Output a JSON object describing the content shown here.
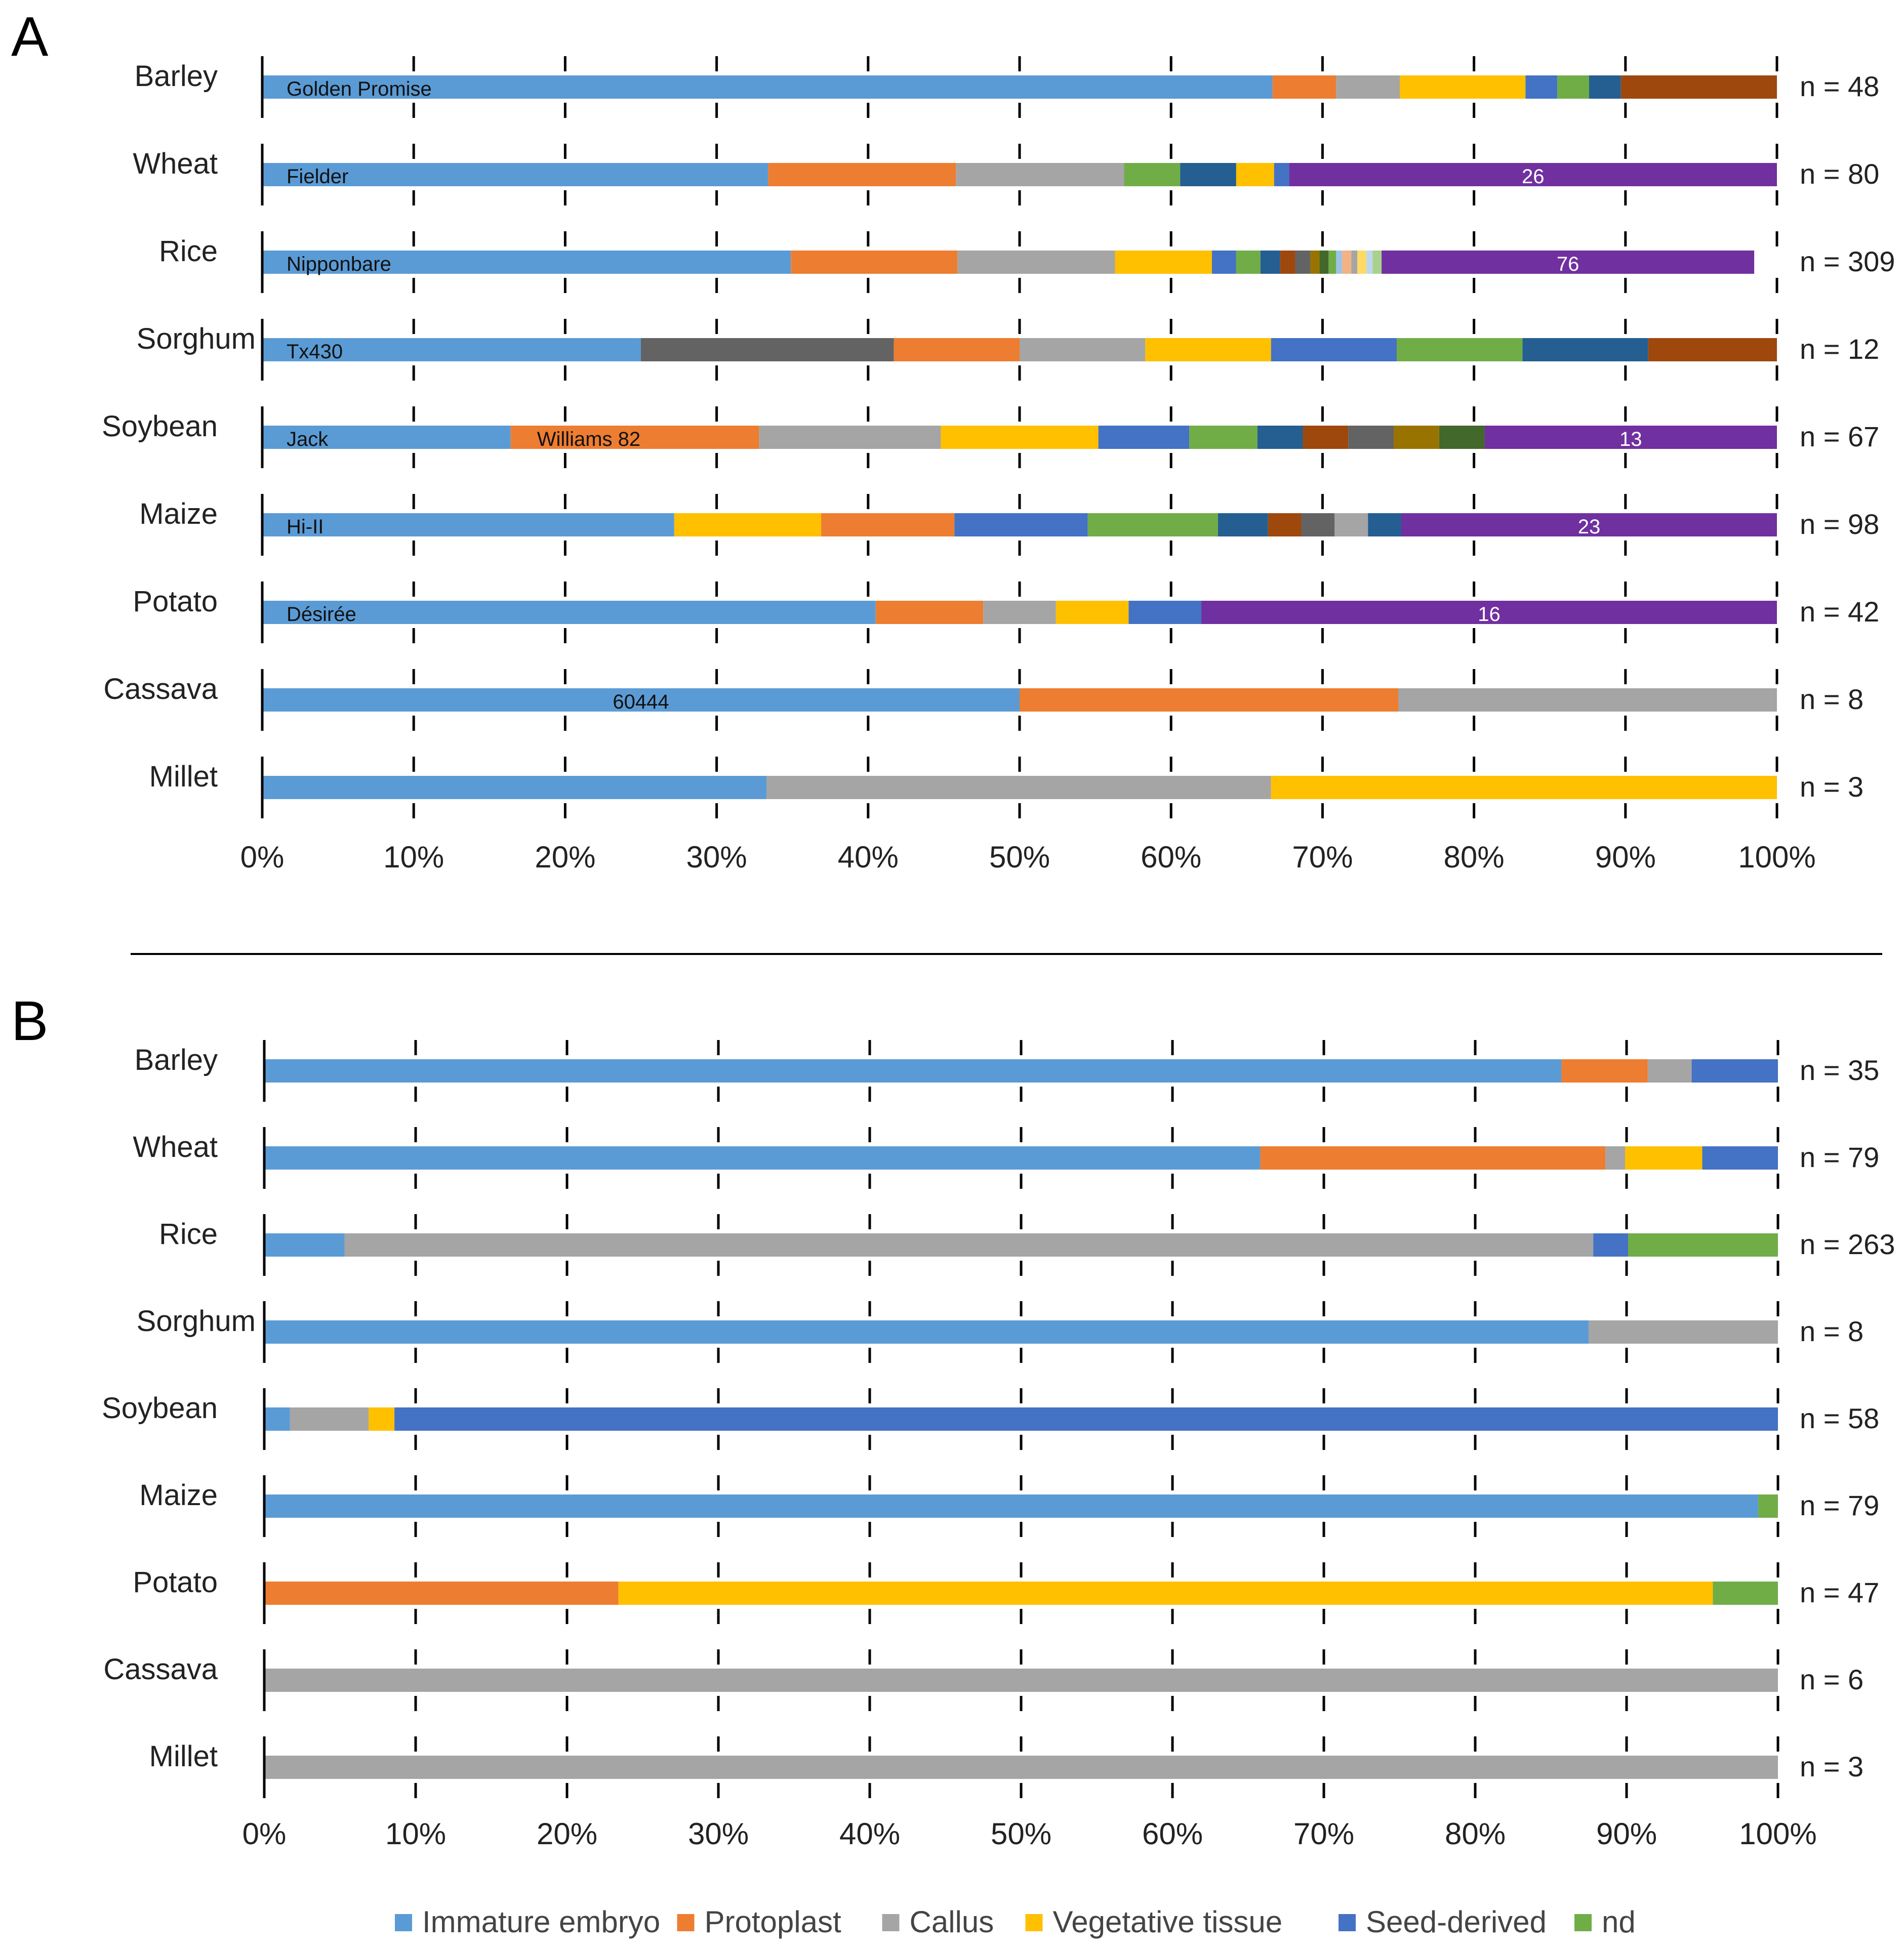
{
  "colors": {
    "immature_embryo": "#5B9BD5",
    "protoplast": "#ED7D31",
    "callus": "#A5A5A5",
    "vegetative_tissue": "#FFC000",
    "seed_derived": "#4472C4",
    "nd": "#70AD47",
    "dark_gray": "#636363",
    "dark_blue": "#255E91",
    "brown": "#9E480E",
    "purple": "#7030A0",
    "olive": "#997300",
    "dark_green": "#43682B",
    "light_orange": "#F4B183",
    "light_yellow": "#FFD966",
    "light_blue": "#9DC3E6",
    "light_green": "#A9D18E",
    "pale_blue": "#BDD7EE"
  },
  "legend": [
    {
      "label": "Immature embryo",
      "color": "immature_embryo"
    },
    {
      "label": "Protoplast",
      "color": "protoplast"
    },
    {
      "label": "Callus",
      "color": "callus"
    },
    {
      "label": "Vegetative tissue",
      "color": "vegetative_tissue"
    },
    {
      "label": "Seed-derived",
      "color": "seed_derived"
    },
    {
      "label": "nd",
      "color": "nd"
    }
  ],
  "chart_data": [
    {
      "panel": "A",
      "type": "bar",
      "orientation": "horizontal-stacked-100",
      "x_ticks": [
        "0%",
        "10%",
        "20%",
        "30%",
        "40%",
        "50%",
        "60%",
        "70%",
        "80%",
        "90%",
        "100%"
      ],
      "xlim": [
        0,
        100
      ],
      "rows": [
        {
          "crop": "Barley",
          "n": "n = 48",
          "segments": [
            {
              "color": "immature_embryo",
              "value": 66.7,
              "label": "Golden Promise"
            },
            {
              "color": "protoplast",
              "value": 4.2
            },
            {
              "color": "callus",
              "value": 4.2
            },
            {
              "color": "vegetative_tissue",
              "value": 8.3
            },
            {
              "color": "seed_derived",
              "value": 2.1
            },
            {
              "color": "nd",
              "value": 2.1
            },
            {
              "color": "dark_blue",
              "value": 2.1
            },
            {
              "color": "brown",
              "value": 10.3
            }
          ]
        },
        {
          "crop": "Wheat",
          "n": "n = 80",
          "segments": [
            {
              "color": "immature_embryo",
              "value": 33.4,
              "label": "Fielder"
            },
            {
              "color": "protoplast",
              "value": 12.4
            },
            {
              "color": "callus",
              "value": 11.1
            },
            {
              "color": "nd",
              "value": 3.7
            },
            {
              "color": "dark_blue",
              "value": 3.7
            },
            {
              "color": "vegetative_tissue",
              "value": 2.5
            },
            {
              "color": "seed_derived",
              "value": 1.0
            },
            {
              "color": "purple",
              "value": 32.2,
              "label": "26"
            }
          ]
        },
        {
          "crop": "Rice",
          "n": "n = 309",
          "segments": [
            {
              "color": "immature_embryo",
              "value": 34.9,
              "label": "Nipponbare"
            },
            {
              "color": "protoplast",
              "value": 11.0
            },
            {
              "color": "callus",
              "value": 10.4
            },
            {
              "color": "vegetative_tissue",
              "value": 6.4
            },
            {
              "color": "seed_derived",
              "value": 1.6
            },
            {
              "color": "nd",
              "value": 1.6
            },
            {
              "color": "dark_blue",
              "value": 1.3
            },
            {
              "color": "brown",
              "value": 1.0
            },
            {
              "color": "dark_gray",
              "value": 1.0
            },
            {
              "color": "olive",
              "value": 0.6
            },
            {
              "color": "dark_green",
              "value": 0.6
            },
            {
              "color": "nd",
              "value": 0.5
            },
            {
              "color": "light_blue",
              "value": 0.4
            },
            {
              "color": "light_orange",
              "value": 0.6
            },
            {
              "color": "callus",
              "value": 0.4
            },
            {
              "color": "light_yellow",
              "value": 0.6
            },
            {
              "color": "pale_blue",
              "value": 0.4
            },
            {
              "color": "light_green",
              "value": 0.6
            },
            {
              "color": "purple",
              "value": 24.6,
              "label": "76"
            }
          ]
        },
        {
          "crop": "Sorghum",
          "n": "n = 12",
          "segments": [
            {
              "color": "immature_embryo",
              "value": 25.0,
              "label": "Tx430"
            },
            {
              "color": "dark_gray",
              "value": 16.7
            },
            {
              "color": "protoplast",
              "value": 8.3
            },
            {
              "color": "callus",
              "value": 8.3
            },
            {
              "color": "vegetative_tissue",
              "value": 8.3
            },
            {
              "color": "seed_derived",
              "value": 8.3
            },
            {
              "color": "nd",
              "value": 8.3
            },
            {
              "color": "dark_blue",
              "value": 8.3
            },
            {
              "color": "brown",
              "value": 8.5
            }
          ]
        },
        {
          "crop": "Soybean",
          "n": "n = 67",
          "segments": [
            {
              "color": "immature_embryo",
              "value": 16.4,
              "label": "Jack"
            },
            {
              "color": "protoplast",
              "value": 16.4,
              "label": "Williams 82"
            },
            {
              "color": "callus",
              "value": 12.0
            },
            {
              "color": "vegetative_tissue",
              "value": 10.4
            },
            {
              "color": "seed_derived",
              "value": 6.0
            },
            {
              "color": "nd",
              "value": 4.5
            },
            {
              "color": "dark_blue",
              "value": 3.0
            },
            {
              "color": "brown",
              "value": 3.0
            },
            {
              "color": "dark_gray",
              "value": 3.0
            },
            {
              "color": "olive",
              "value": 3.0
            },
            {
              "color": "dark_green",
              "value": 3.0
            },
            {
              "color": "purple",
              "value": 19.4,
              "label": "13"
            }
          ]
        },
        {
          "crop": "Maize",
          "n": "n = 98",
          "segments": [
            {
              "color": "immature_embryo",
              "value": 27.2,
              "label": "Hi-II"
            },
            {
              "color": "vegetative_tissue",
              "value": 9.7
            },
            {
              "color": "protoplast",
              "value": 8.8
            },
            {
              "color": "seed_derived",
              "value": 8.8
            },
            {
              "color": "nd",
              "value": 8.6
            },
            {
              "color": "dark_blue",
              "value": 3.3
            },
            {
              "color": "brown",
              "value": 2.2
            },
            {
              "color": "dark_gray",
              "value": 2.2
            },
            {
              "color": "callus",
              "value": 2.2
            },
            {
              "color": "dark_blue",
              "value": 2.2
            },
            {
              "color": "purple",
              "value": 24.8,
              "label": "23"
            }
          ]
        },
        {
          "crop": "Potato",
          "n": "n = 42",
          "segments": [
            {
              "color": "immature_embryo",
              "value": 40.5,
              "label": "Désirée"
            },
            {
              "color": "protoplast",
              "value": 7.1
            },
            {
              "color": "callus",
              "value": 4.8
            },
            {
              "color": "vegetative_tissue",
              "value": 4.8
            },
            {
              "color": "seed_derived",
              "value": 4.8
            },
            {
              "color": "purple",
              "value": 38.0,
              "label": "16"
            }
          ]
        },
        {
          "crop": "Cassava",
          "n": "n = 8",
          "segments": [
            {
              "color": "immature_embryo",
              "value": 50.0,
              "label": "60444"
            },
            {
              "color": "protoplast",
              "value": 25.0
            },
            {
              "color": "callus",
              "value": 25.0
            }
          ]
        },
        {
          "crop": "Millet",
          "n": "n = 3",
          "segments": [
            {
              "color": "immature_embryo",
              "value": 33.3
            },
            {
              "color": "callus",
              "value": 33.3
            },
            {
              "color": "vegetative_tissue",
              "value": 33.4
            }
          ]
        }
      ]
    },
    {
      "panel": "B",
      "type": "bar",
      "orientation": "horizontal-stacked-100",
      "x_ticks": [
        "0%",
        "10%",
        "20%",
        "30%",
        "40%",
        "50%",
        "60%",
        "70%",
        "80%",
        "90%",
        "100%"
      ],
      "xlim": [
        0,
        100
      ],
      "rows": [
        {
          "crop": "Barley",
          "n": "n = 35",
          "segments": [
            {
              "color": "immature_embryo",
              "value": 85.7
            },
            {
              "color": "protoplast",
              "value": 5.7
            },
            {
              "color": "callus",
              "value": 2.9
            },
            {
              "color": "seed_derived",
              "value": 5.7
            }
          ]
        },
        {
          "crop": "Wheat",
          "n": "n = 79",
          "segments": [
            {
              "color": "immature_embryo",
              "value": 65.8
            },
            {
              "color": "protoplast",
              "value": 22.8
            },
            {
              "color": "callus",
              "value": 1.3
            },
            {
              "color": "vegetative_tissue",
              "value": 5.1
            },
            {
              "color": "seed_derived",
              "value": 5.0
            }
          ]
        },
        {
          "crop": "Rice",
          "n": "n = 263",
          "segments": [
            {
              "color": "immature_embryo",
              "value": 5.3
            },
            {
              "color": "callus",
              "value": 82.5
            },
            {
              "color": "seed_derived",
              "value": 2.3
            },
            {
              "color": "nd",
              "value": 9.9
            }
          ]
        },
        {
          "crop": "Sorghum",
          "n": "n = 8",
          "segments": [
            {
              "color": "immature_embryo",
              "value": 87.5
            },
            {
              "color": "callus",
              "value": 12.5
            }
          ]
        },
        {
          "crop": "Soybean",
          "n": "n = 58",
          "segments": [
            {
              "color": "immature_embryo",
              "value": 1.7
            },
            {
              "color": "callus",
              "value": 5.2
            },
            {
              "color": "vegetative_tissue",
              "value": 1.7
            },
            {
              "color": "seed_derived",
              "value": 91.4
            }
          ]
        },
        {
          "crop": "Maize",
          "n": "n = 79",
          "segments": [
            {
              "color": "immature_embryo",
              "value": 98.7
            },
            {
              "color": "nd",
              "value": 1.3
            }
          ]
        },
        {
          "crop": "Potato",
          "n": "n = 47",
          "segments": [
            {
              "color": "protoplast",
              "value": 23.4
            },
            {
              "color": "vegetative_tissue",
              "value": 72.3
            },
            {
              "color": "nd",
              "value": 4.3
            }
          ]
        },
        {
          "crop": "Cassava",
          "n": "n = 6",
          "segments": [
            {
              "color": "callus",
              "value": 100.0
            }
          ]
        },
        {
          "crop": "Millet",
          "n": "n = 3",
          "segments": [
            {
              "color": "callus",
              "value": 100.0
            }
          ]
        }
      ]
    }
  ]
}
